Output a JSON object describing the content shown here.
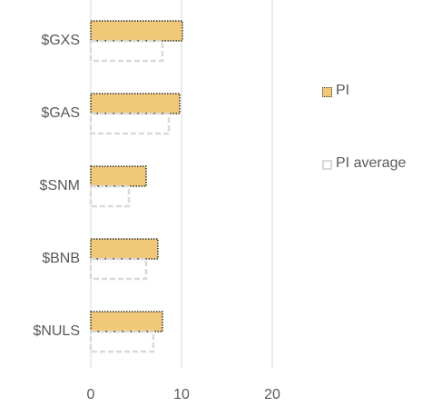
{
  "chart_data": {
    "type": "barh",
    "categories": [
      "$GXS",
      "$GAS",
      "$SNM",
      "$BNB",
      "$NULS"
    ],
    "series": [
      {
        "name": "PI",
        "color": "#f0c878",
        "values": [
          10.1,
          9.8,
          6.1,
          7.4,
          7.9
        ]
      },
      {
        "name": "PI average",
        "color": "#d9d9d9",
        "values": [
          7.9,
          8.6,
          4.2,
          6.1,
          6.9
        ]
      }
    ],
    "xlim": [
      0,
      20
    ],
    "xticks": [
      0,
      10,
      20
    ],
    "grid": true,
    "legend": "right"
  }
}
